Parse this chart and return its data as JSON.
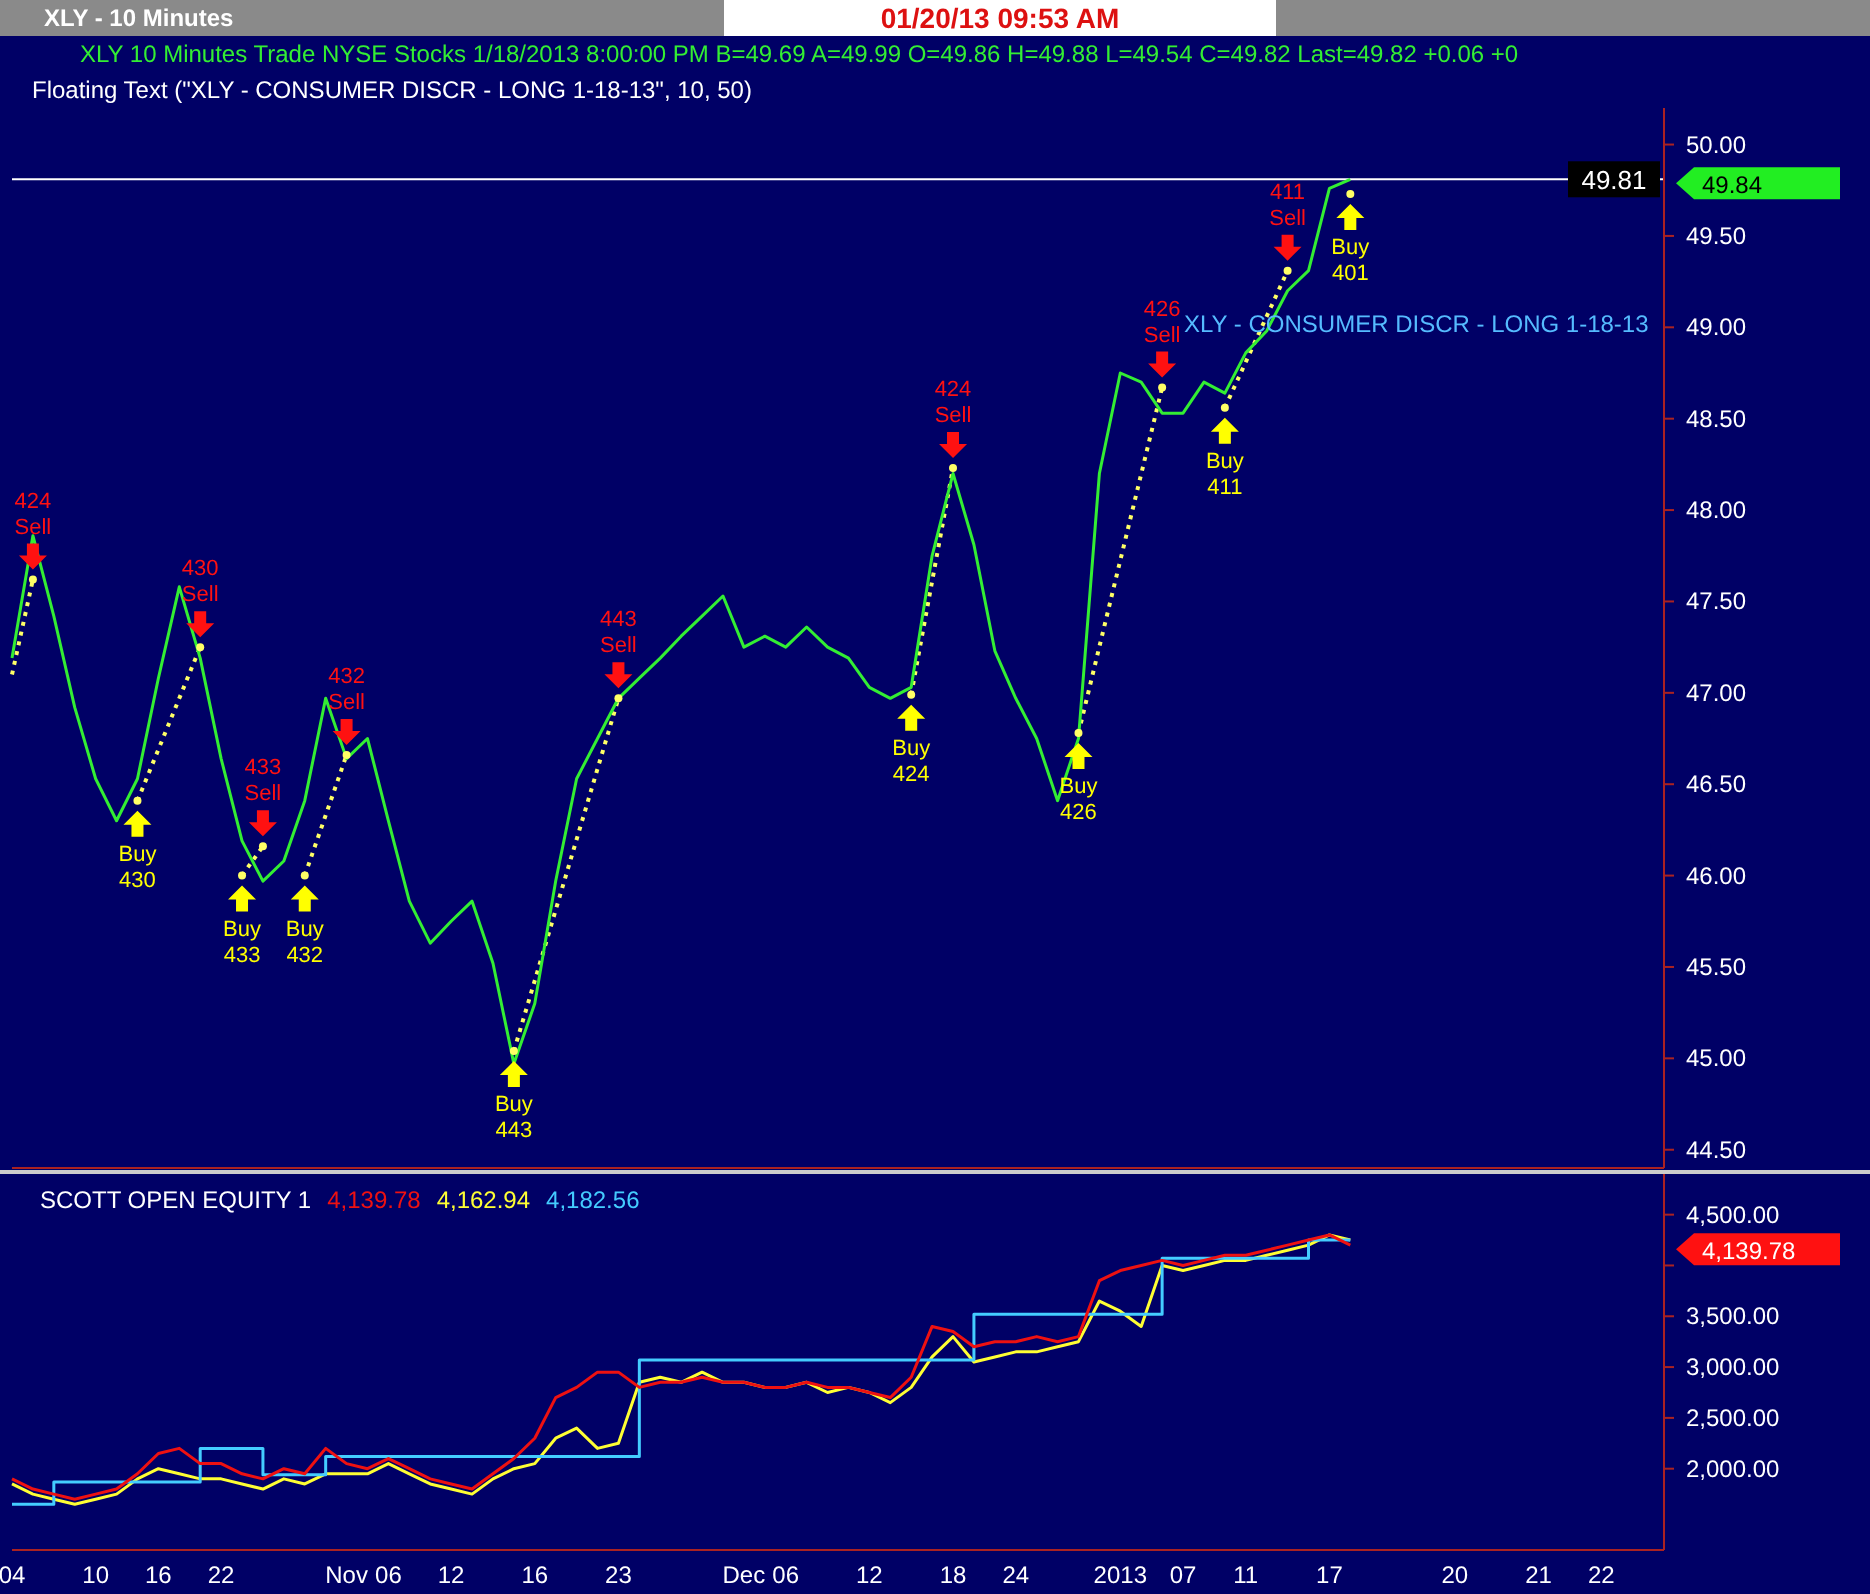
{
  "chart_data": [
    {
      "type": "line",
      "title": "XLY - 10 Minutes",
      "subtitle": "XLY  10 Minutes  Trade NYSE Stocks 1/18/2013 8:00:00 PM B=49.69 A=49.99 O=49.86 H=49.88 L=49.54 C=49.82 Last=49.82 +0.06 +0",
      "categories": [
        null,
        null,
        null,
        null,
        null,
        null,
        null,
        null,
        null,
        null,
        null,
        null,
        null,
        null,
        null,
        null,
        null,
        null,
        null,
        null,
        null,
        null,
        null,
        null,
        null,
        null,
        null,
        null,
        null,
        null,
        null,
        null,
        null,
        null,
        null,
        null,
        null,
        null,
        null,
        null,
        null,
        null,
        null,
        null,
        null,
        null,
        null,
        null,
        null,
        null,
        null,
        null,
        null,
        null,
        null,
        null,
        null,
        null,
        null,
        null,
        null,
        null,
        null,
        null,
        null,
        null,
        null,
        null,
        null,
        null,
        null,
        null,
        null,
        null,
        null,
        null,
        null,
        null,
        null,
        null
      ],
      "series": [
        {
          "type": "line",
          "color": "#33ee33",
          "values": [
            47.19,
            47.86,
            47.42,
            46.92,
            46.53,
            46.3,
            46.53,
            47.08,
            47.58,
            47.19,
            46.64,
            46.19,
            45.97,
            46.08,
            46.41,
            46.97,
            46.64,
            46.75,
            46.3,
            45.86,
            45.63,
            45.75,
            45.86,
            45.52,
            44.97,
            45.3,
            45.97,
            46.53,
            46.75,
            46.97,
            47.08,
            47.19,
            47.31,
            47.42,
            47.53,
            47.25,
            47.31,
            47.25,
            47.36,
            47.25,
            47.19,
            47.03,
            46.97,
            47.03,
            47.75,
            48.2,
            47.81,
            47.23,
            46.97,
            46.75,
            46.41,
            46.75,
            48.2,
            48.75,
            48.7,
            48.53,
            48.53,
            48.7,
            48.64,
            48.86,
            48.98,
            49.2,
            49.31,
            49.76,
            49.81,
            null,
            null,
            null,
            null,
            null,
            null,
            null,
            null,
            null,
            null,
            null,
            null,
            null,
            null,
            null
          ]
        },
        {
          "type": "line",
          "line_style": "dotted",
          "marker": "circle",
          "color": "#ffff66",
          "values": [
            47.1,
            47.62,
            null,
            null,
            null,
            null,
            null,
            null,
            null,
            null,
            null,
            null,
            null,
            null,
            null,
            null,
            null,
            null,
            null,
            null,
            null,
            null,
            null,
            null,
            null,
            null,
            null,
            null,
            null,
            null,
            null,
            null,
            null,
            null,
            null,
            null,
            null,
            null,
            null,
            null,
            null,
            null,
            null,
            null,
            null,
            null,
            null,
            null,
            null,
            null,
            null,
            null,
            null,
            null,
            null,
            null,
            null,
            null,
            null,
            null,
            null,
            null,
            null,
            null,
            null,
            null,
            null,
            null,
            null,
            null,
            null,
            null,
            null,
            null,
            null,
            null,
            null,
            null,
            null,
            null
          ]
        },
        {
          "type": "line",
          "line_style": "dotted",
          "marker": "circle",
          "color": "#ffff66",
          "values": [
            null,
            null,
            null,
            null,
            null,
            null,
            46.41,
            null,
            null,
            47.25,
            null,
            null,
            null,
            null,
            null,
            null,
            null,
            null,
            null,
            null,
            null,
            null,
            null,
            null,
            null,
            null,
            null,
            null,
            null,
            null,
            null,
            null,
            null,
            null,
            null,
            null,
            null,
            null,
            null,
            null,
            null,
            null,
            null,
            null,
            null,
            null,
            null,
            null,
            null,
            null,
            null,
            null,
            null,
            null,
            null,
            null,
            null,
            null,
            null,
            null,
            null,
            null,
            null,
            null,
            null,
            null,
            null,
            null,
            null,
            null,
            null,
            null,
            null,
            null,
            null,
            null,
            null,
            null,
            null,
            null
          ]
        },
        {
          "type": "line",
          "line_style": "dotted",
          "marker": "circle",
          "color": "#ffff66",
          "values": [
            null,
            null,
            null,
            null,
            null,
            null,
            null,
            null,
            null,
            null,
            null,
            46.0,
            46.16,
            null,
            null,
            null,
            null,
            null,
            null,
            null,
            null,
            null,
            null,
            null,
            null,
            null,
            null,
            null,
            null,
            null,
            null,
            null,
            null,
            null,
            null,
            null,
            null,
            null,
            null,
            null,
            null,
            null,
            null,
            null,
            null,
            null,
            null,
            null,
            null,
            null,
            null,
            null,
            null,
            null,
            null,
            null,
            null,
            null,
            null,
            null,
            null,
            null,
            null,
            null,
            null,
            null,
            null,
            null,
            null,
            null,
            null,
            null,
            null,
            null,
            null,
            null,
            null,
            null,
            null,
            null
          ]
        },
        {
          "type": "line",
          "line_style": "dotted",
          "marker": "circle",
          "color": "#ffff66",
          "values": [
            null,
            null,
            null,
            null,
            null,
            null,
            null,
            null,
            null,
            null,
            null,
            null,
            null,
            null,
            46.0,
            null,
            46.66,
            null,
            null,
            null,
            null,
            null,
            null,
            null,
            null,
            null,
            null,
            null,
            null,
            null,
            null,
            null,
            null,
            null,
            null,
            null,
            null,
            null,
            null,
            null,
            null,
            null,
            null,
            null,
            null,
            null,
            null,
            null,
            null,
            null,
            null,
            null,
            null,
            null,
            null,
            null,
            null,
            null,
            null,
            null,
            null,
            null,
            null,
            null,
            null,
            null,
            null,
            null,
            null,
            null,
            null,
            null,
            null,
            null,
            null,
            null,
            null,
            null,
            null,
            null
          ]
        },
        {
          "type": "line",
          "line_style": "dotted",
          "marker": "circle",
          "color": "#ffff66",
          "values": [
            null,
            null,
            null,
            null,
            null,
            null,
            null,
            null,
            null,
            null,
            null,
            null,
            null,
            null,
            null,
            null,
            null,
            null,
            null,
            null,
            null,
            null,
            null,
            null,
            45.04,
            null,
            null,
            null,
            null,
            46.97,
            null,
            null,
            null,
            null,
            null,
            null,
            null,
            null,
            null,
            null,
            null,
            null,
            null,
            null,
            null,
            null,
            null,
            null,
            null,
            null,
            null,
            null,
            null,
            null,
            null,
            null,
            null,
            null,
            null,
            null,
            null,
            null,
            null,
            null,
            null,
            null,
            null,
            null,
            null,
            null,
            null,
            null,
            null,
            null,
            null,
            null,
            null,
            null,
            null,
            null
          ]
        },
        {
          "type": "line",
          "line_style": "dotted",
          "marker": "circle",
          "color": "#ffff66",
          "values": [
            null,
            null,
            null,
            null,
            null,
            null,
            null,
            null,
            null,
            null,
            null,
            null,
            null,
            null,
            null,
            null,
            null,
            null,
            null,
            null,
            null,
            null,
            null,
            null,
            null,
            null,
            null,
            null,
            null,
            null,
            null,
            null,
            null,
            null,
            null,
            null,
            null,
            null,
            null,
            null,
            null,
            null,
            null,
            46.99,
            null,
            48.23,
            null,
            null,
            null,
            null,
            null,
            null,
            null,
            null,
            null,
            null,
            null,
            null,
            null,
            null,
            null,
            null,
            null,
            null,
            null,
            null,
            null,
            null,
            null,
            null,
            null,
            null,
            null,
            null,
            null,
            null,
            null,
            null,
            null,
            null
          ]
        },
        {
          "type": "line",
          "line_style": "dotted",
          "marker": "circle",
          "color": "#ffff66",
          "values": [
            null,
            null,
            null,
            null,
            null,
            null,
            null,
            null,
            null,
            null,
            null,
            null,
            null,
            null,
            null,
            null,
            null,
            null,
            null,
            null,
            null,
            null,
            null,
            null,
            null,
            null,
            null,
            null,
            null,
            null,
            null,
            null,
            null,
            null,
            null,
            null,
            null,
            null,
            null,
            null,
            null,
            null,
            null,
            null,
            null,
            null,
            null,
            null,
            null,
            null,
            null,
            46.78,
            null,
            null,
            null,
            48.67,
            null,
            null,
            null,
            null,
            null,
            null,
            null,
            null,
            null,
            null,
            null,
            null,
            null,
            null,
            null,
            null,
            null,
            null,
            null,
            null,
            null,
            null,
            null,
            null
          ]
        },
        {
          "type": "line",
          "line_style": "dotted",
          "marker": "circle",
          "color": "#ffff66",
          "values": [
            null,
            null,
            null,
            null,
            null,
            null,
            null,
            null,
            null,
            null,
            null,
            null,
            null,
            null,
            null,
            null,
            null,
            null,
            null,
            null,
            null,
            null,
            null,
            null,
            null,
            null,
            null,
            null,
            null,
            null,
            null,
            null,
            null,
            null,
            null,
            null,
            null,
            null,
            null,
            null,
            null,
            null,
            null,
            null,
            null,
            null,
            null,
            null,
            null,
            null,
            null,
            null,
            null,
            null,
            null,
            null,
            null,
            null,
            48.56,
            null,
            null,
            49.31,
            null,
            null,
            null,
            null,
            null,
            null,
            null,
            null,
            null,
            null,
            null,
            null,
            null,
            null,
            null,
            null,
            null,
            null
          ]
        },
        {
          "type": "line",
          "line_style": "dotted",
          "marker": "circle",
          "color": "#ffff66",
          "values": [
            null,
            null,
            null,
            null,
            null,
            null,
            null,
            null,
            null,
            null,
            null,
            null,
            null,
            null,
            null,
            null,
            null,
            null,
            null,
            null,
            null,
            null,
            null,
            null,
            null,
            null,
            null,
            null,
            null,
            null,
            null,
            null,
            null,
            null,
            null,
            null,
            null,
            null,
            null,
            null,
            null,
            null,
            null,
            null,
            null,
            null,
            null,
            null,
            null,
            null,
            null,
            null,
            null,
            null,
            null,
            null,
            null,
            null,
            null,
            null,
            null,
            null,
            null,
            null,
            49.73,
            null,
            null,
            null,
            null,
            null,
            null,
            null,
            null,
            null,
            null,
            null,
            null,
            null,
            null,
            null
          ]
        }
      ],
      "ylim": [
        44.4,
        50.2
      ],
      "yticks": [
        {
          "value": 44.5,
          "label": "44.50"
        },
        {
          "value": 45,
          "label": "45.00"
        },
        {
          "value": 45.5,
          "label": "45.50"
        },
        {
          "value": 46,
          "label": "46.00"
        },
        {
          "value": 46.5,
          "label": "46.50"
        },
        {
          "value": 47,
          "label": "47.00"
        },
        {
          "value": 47.5,
          "label": "47.50"
        },
        {
          "value": 48,
          "label": "48.00"
        },
        {
          "value": 48.5,
          "label": "48.50"
        },
        {
          "value": 49,
          "label": "49.00"
        },
        {
          "value": 49.5,
          "label": "49.50"
        },
        {
          "value": 50,
          "label": "50.00"
        }
      ],
      "tick_labels": "y",
      "ref_lines": [
        {
          "axis": "y",
          "value": 49.81,
          "label": "49.81",
          "color": "#ffffff"
        }
      ],
      "annotations": [
        "01/20/13  09:53 AM",
        "Floating Text  (\"XLY - CONSUMER DISCR - LONG 1-18-13\",  10,  50)",
        "XLY - CONSUMER DISCR - LONG 1-18-13",
        "49.84",
        "424 Sell",
        "Buy 430",
        "430 Sell",
        "Buy 433",
        "433 Sell",
        "Buy 432",
        "432 Sell",
        "Buy 443",
        "443 Sell",
        "Buy 424",
        "424 Sell",
        "Buy 426",
        "426 Sell",
        "Buy 411",
        "411 Sell",
        "Buy 401"
      ]
    },
    {
      "type": "line",
      "title": "SCOTT OPEN EQUITY 1",
      "categories": [
        "04",
        null,
        null,
        null,
        "10",
        null,
        null,
        "16",
        null,
        null,
        "22",
        null,
        null,
        null,
        null,
        null,
        "Nov",
        null,
        "06",
        null,
        null,
        "12",
        null,
        null,
        null,
        "16",
        null,
        null,
        null,
        "23",
        null,
        null,
        null,
        null,
        null,
        "Dec",
        null,
        "06",
        null,
        null,
        null,
        "12",
        null,
        null,
        null,
        "18",
        null,
        null,
        "24",
        null,
        null,
        null,
        null,
        "2013",
        null,
        null,
        "07",
        null,
        null,
        "11",
        null,
        null,
        null,
        "17",
        null,
        null,
        null,
        null,
        null,
        "20",
        null,
        null,
        null,
        "21",
        null,
        null,
        "22",
        null,
        null,
        null
      ],
      "series": [
        {
          "type": "line",
          "name": "4,139.78",
          "color": "#ee1111",
          "values": [
            1900,
            1800,
            1750,
            1700,
            1750,
            1800,
            1950,
            2150,
            2200,
            2050,
            2050,
            1950,
            1900,
            2000,
            1950,
            2200,
            2050,
            2000,
            2100,
            2000,
            1900,
            1850,
            1800,
            1950,
            2100,
            2300,
            2700,
            2800,
            2950,
            2950,
            2800,
            2850,
            2850,
            2900,
            2850,
            2850,
            2800,
            2800,
            2850,
            2800,
            2800,
            2750,
            2700,
            2900,
            3400,
            3350,
            3200,
            3250,
            3250,
            3300,
            3250,
            3300,
            3850,
            3950,
            4000,
            4050,
            4000,
            4050,
            4100,
            4100,
            4150,
            4200,
            4250,
            4300,
            4200,
            null,
            null,
            null,
            null,
            null,
            null,
            null,
            null,
            null,
            null,
            null,
            null,
            null,
            null,
            null
          ]
        },
        {
          "type": "line",
          "name": "4,162.94",
          "color": "#ffff33",
          "values": [
            1850,
            1750,
            1700,
            1650,
            1700,
            1750,
            1900,
            2000,
            1950,
            1900,
            1900,
            1850,
            1800,
            1900,
            1850,
            1950,
            1950,
            1950,
            2050,
            1950,
            1850,
            1800,
            1750,
            1900,
            2000,
            2050,
            2300,
            2400,
            2200,
            2250,
            2850,
            2900,
            2850,
            2950,
            2850,
            2850,
            2800,
            2800,
            2850,
            2750,
            2800,
            2750,
            2650,
            2800,
            3100,
            3300,
            3050,
            3100,
            3150,
            3150,
            3200,
            3250,
            3650,
            3550,
            3400,
            4000,
            3950,
            4000,
            4050,
            4050,
            4100,
            4150,
            4200,
            4300,
            4250,
            null,
            null,
            null,
            null,
            null,
            null,
            null,
            null,
            null,
            null,
            null,
            null,
            null,
            null,
            null
          ]
        },
        {
          "type": "step",
          "name": "4,182.56",
          "color": "#44ccff",
          "values": [
            1650,
            1650,
            1870,
            1870,
            1870,
            1870,
            1870,
            1870,
            1870,
            2200,
            2200,
            2200,
            1940,
            1940,
            1940,
            2120,
            2120,
            2120,
            2120,
            2120,
            2120,
            2120,
            2120,
            2120,
            2120,
            2120,
            2120,
            2120,
            2120,
            2120,
            3070,
            3070,
            3070,
            3070,
            3070,
            3070,
            3070,
            3070,
            3070,
            3070,
            3070,
            3070,
            3070,
            3070,
            3070,
            3070,
            3520,
            3520,
            3520,
            3520,
            3520,
            3520,
            3520,
            3520,
            3520,
            4070,
            4070,
            4070,
            4070,
            4070,
            4070,
            4070,
            4250,
            4250,
            4250,
            null,
            null,
            null,
            null,
            null,
            null,
            null,
            null,
            null,
            null,
            null,
            null,
            null,
            null,
            null
          ]
        }
      ],
      "ylim": [
        1200,
        4900
      ],
      "yticks": [
        {
          "value": 2000,
          "label": "2,000.00"
        },
        {
          "value": 2500,
          "label": "2,500.00"
        },
        {
          "value": 3000,
          "label": "3,000.00"
        },
        {
          "value": 3500,
          "label": "3,500.00"
        },
        {
          "value": 4000,
          "label": null
        },
        {
          "value": 4500,
          "label": "4,500.00"
        }
      ],
      "annotations": [
        "4,139.78"
      ]
    }
  ]
}
